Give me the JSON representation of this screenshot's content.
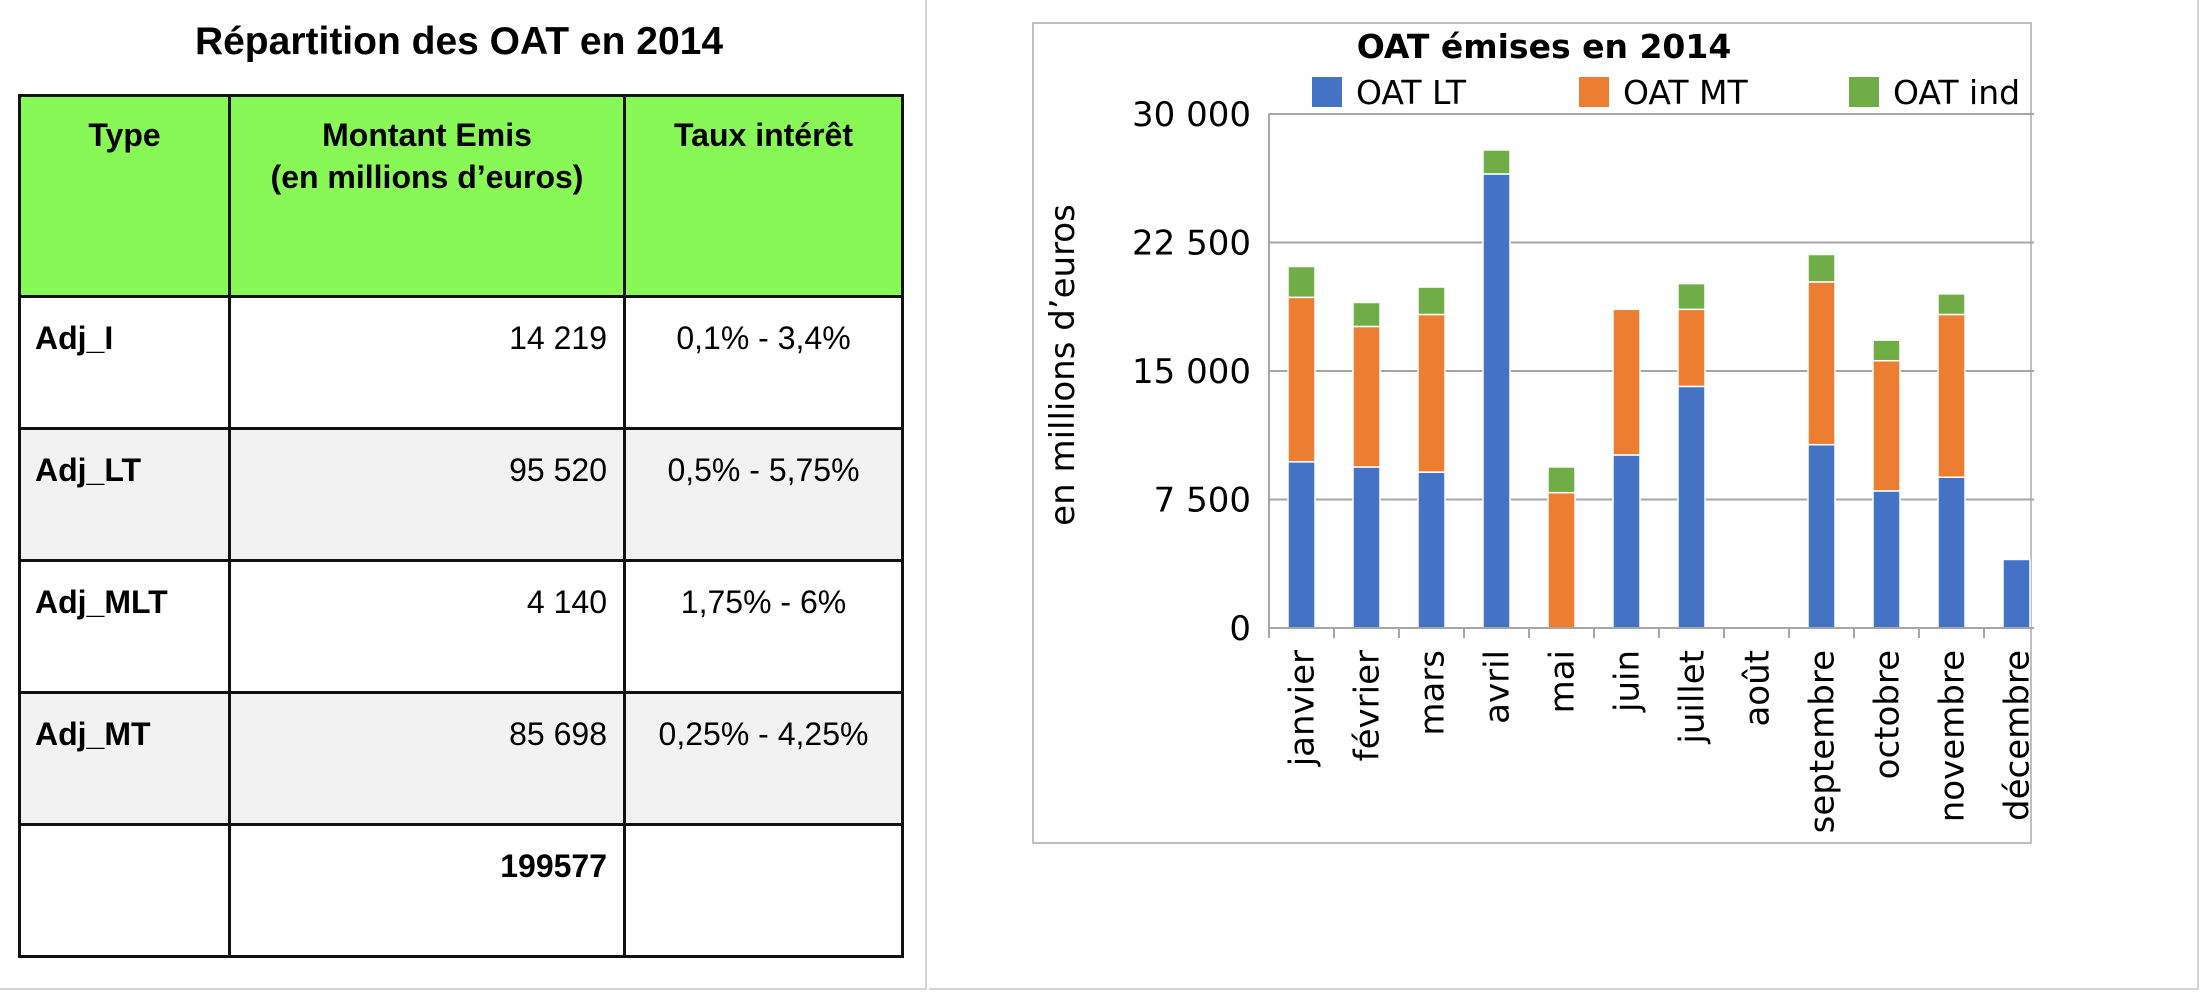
{
  "table": {
    "title": "Répartition des OAT en 2014",
    "headers": {
      "type": "Type",
      "amount_line1": "Montant Emis",
      "amount_line2": "(en millions d’euros)",
      "rate": "Taux intérêt"
    },
    "rows": [
      {
        "type": "Adj_I",
        "amount": "14 219",
        "rate": "0,1% - 3,4%"
      },
      {
        "type": "Adj_LT",
        "amount": "95 520",
        "rate": "0,5% - 5,75%"
      },
      {
        "type": "Adj_MLT",
        "amount": "4 140",
        "rate": "1,75% - 6%"
      },
      {
        "type": "Adj_MT",
        "amount": "85 698",
        "rate": "0,25% - 4,25%"
      }
    ],
    "total": {
      "type": "",
      "amount": "199577",
      "rate": ""
    },
    "header_color": "#87f856"
  },
  "chart_data": {
    "type": "bar",
    "stacked": true,
    "title": "OAT émises en 2014",
    "ylabel": "en millions d’euros",
    "xlabel": "",
    "ylim": [
      0,
      30000
    ],
    "yticks": [
      0,
      7500,
      15000,
      22500,
      30000
    ],
    "ytick_labels": [
      "0",
      "7 500",
      "15 000",
      "22 500",
      "30 000"
    ],
    "grid": true,
    "legend_position": "top",
    "categories": [
      "janvier",
      "février",
      "mars",
      "avril",
      "mai",
      "juin",
      "juillet",
      "août",
      "septembre",
      "octobre",
      "novembre",
      "décembre"
    ],
    "series": [
      {
        "name": "OAT LT",
        "color": "#4472c4",
        "values": [
          9700,
          9400,
          9100,
          26500,
          0,
          10100,
          14100,
          0,
          10700,
          8000,
          8800,
          4000
        ]
      },
      {
        "name": "OAT MT",
        "color": "#ed7d31",
        "values": [
          9600,
          8200,
          9200,
          0,
          7900,
          8500,
          4500,
          0,
          9500,
          7600,
          9500,
          0
        ]
      },
      {
        "name": "OAT ind",
        "color": "#70ad47",
        "values": [
          1800,
          1400,
          1600,
          1400,
          1500,
          0,
          1500,
          0,
          1600,
          1200,
          1200,
          0
        ]
      }
    ]
  }
}
